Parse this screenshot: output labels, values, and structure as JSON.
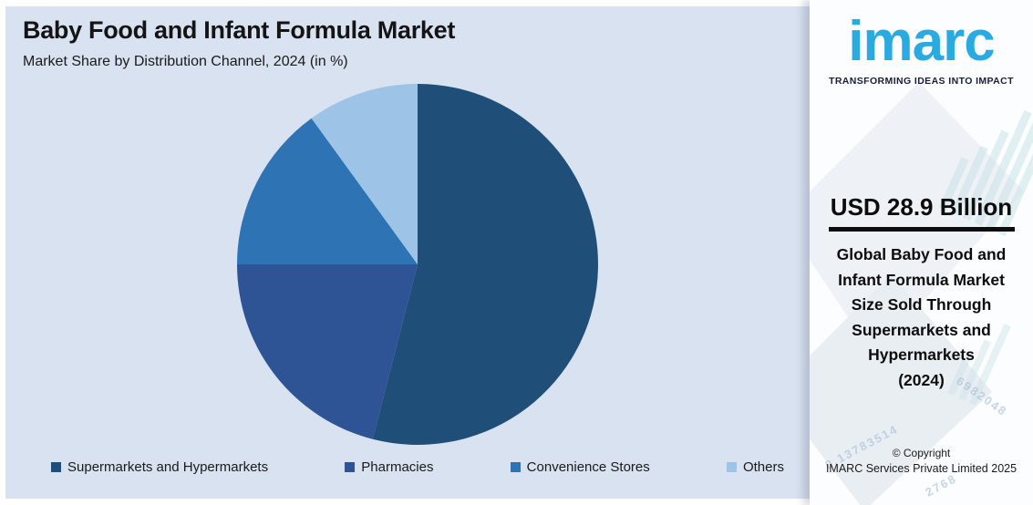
{
  "header": {
    "title": "Baby Food and Infant Formula Market",
    "subtitle": "Market Share by Distribution Channel, 2024 (in %)"
  },
  "chart_data": {
    "type": "pie",
    "title": "Baby Food and Infant Formula Market",
    "subtitle": "Market Share by Distribution Channel, 2024 (in %)",
    "unit": "%",
    "start_angle_deg": 0,
    "direction": "clockwise",
    "legend_position": "bottom",
    "slices": [
      {
        "label": "Supermarkets and Hypermarkets",
        "value": 54,
        "color": "#1F4E78"
      },
      {
        "label": "Pharmacies",
        "value": 21,
        "color": "#2F5496"
      },
      {
        "label": "Convenience Stores",
        "value": 15,
        "color": "#2E74B5"
      },
      {
        "label": "Others",
        "value": 10,
        "color": "#9DC3E6"
      }
    ]
  },
  "side_panel": {
    "logo_text": "imarc",
    "logo_tagline": "TRANSFORMING IDEAS INTO IMPACT",
    "logo_color": "#29ABE2",
    "headline_value": "USD 28.9 Billion",
    "description": "Global Baby Food and\nInfant Formula Market\nSize Sold Through\nSupermarkets and\nHypermarkets\n(2024)",
    "copyright_line1": "© Copyright",
    "copyright_line2": "IMARC Services Private Limited 2025",
    "watermark_numbers": [
      "6982048",
      "0.13783514",
      "2768"
    ]
  },
  "colors": {
    "chart_background": "#D9E2F0",
    "panel_background": "#FCFDFE",
    "title_text": "#141414"
  }
}
